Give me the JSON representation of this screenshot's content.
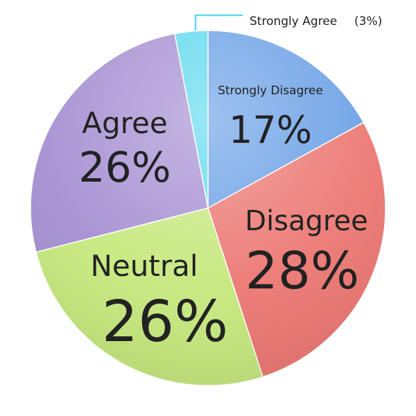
{
  "chart_data": {
    "type": "pie",
    "slices": [
      {
        "name": "Strongly Disagree",
        "value": 17,
        "value_label": "17%",
        "color": "#6aa0e6"
      },
      {
        "name": "Disagree",
        "value": 28,
        "value_label": "28%",
        "color": "#ec7772"
      },
      {
        "name": "Neutral",
        "value": 26,
        "value_label": "26%",
        "color": "#c6e87d"
      },
      {
        "name": "Agree",
        "value": 26,
        "value_label": "26%",
        "color": "#a58fd2"
      },
      {
        "name": "Strongly Agree",
        "value": 3,
        "value_label": "(3%)",
        "color": "#5fd9ef"
      }
    ],
    "start_angle_deg": 0,
    "direction": "clockwise",
    "legend": "none"
  }
}
